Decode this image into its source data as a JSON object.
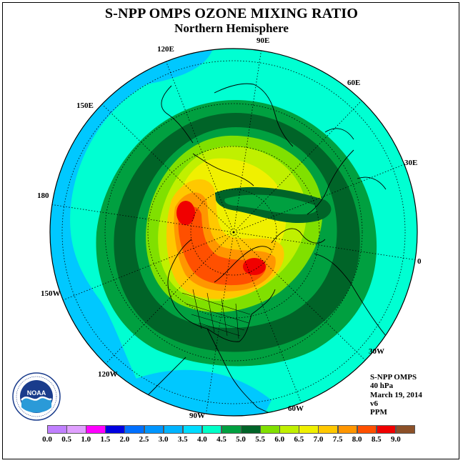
{
  "header": {
    "title": "S-NPP OMPS OZONE MIXING RATIO",
    "subtitle": "Northern Hemisphere"
  },
  "longitude_labels": [
    "90E",
    "60E",
    "30E",
    "0",
    "30W",
    "60W",
    "90W",
    "120W",
    "150W",
    "180",
    "150E",
    "120E"
  ],
  "info": {
    "instrument": "S-NPP OMPS",
    "level": "40 hPa",
    "date": "March 19, 2014",
    "version": "v6",
    "units": "PPM"
  },
  "logo": {
    "name": "NOAA",
    "ring_text": "NATIONAL OCEANIC AND ATMOSPHERIC ADMINISTRATION · U.S. DEPARTMENT OF COMMERCE"
  },
  "color_scale": {
    "labels": [
      "0.0",
      "0.5",
      "1.0",
      "1.5",
      "2.0",
      "2.5",
      "3.0",
      "3.5",
      "4.0",
      "4.5",
      "5.0",
      "5.5",
      "6.0",
      "6.5",
      "7.0",
      "7.5",
      "8.0",
      "8.5",
      "9.0"
    ],
    "colors": [
      "#c080ff",
      "#e0a0ff",
      "#ff00ff",
      "#0000e0",
      "#0070ff",
      "#0096ff",
      "#00b4ff",
      "#00dcff",
      "#00ffc8",
      "#00a040",
      "#006428",
      "#80e000",
      "#c0f000",
      "#f0f000",
      "#ffc800",
      "#ff9600",
      "#ff5000",
      "#f00000",
      "#8c5028"
    ]
  },
  "colors": {
    "outer_blue": "#00c8ff",
    "cyan": "#00ffd2",
    "green": "#00a040",
    "dark_green": "#006428",
    "light_green": "#80e000",
    "yellow_green": "#c0f000",
    "yellow": "#f0f000",
    "orange_yellow": "#ffc800",
    "orange": "#ff9600",
    "red_orange": "#ff5000",
    "red": "#f00000"
  }
}
